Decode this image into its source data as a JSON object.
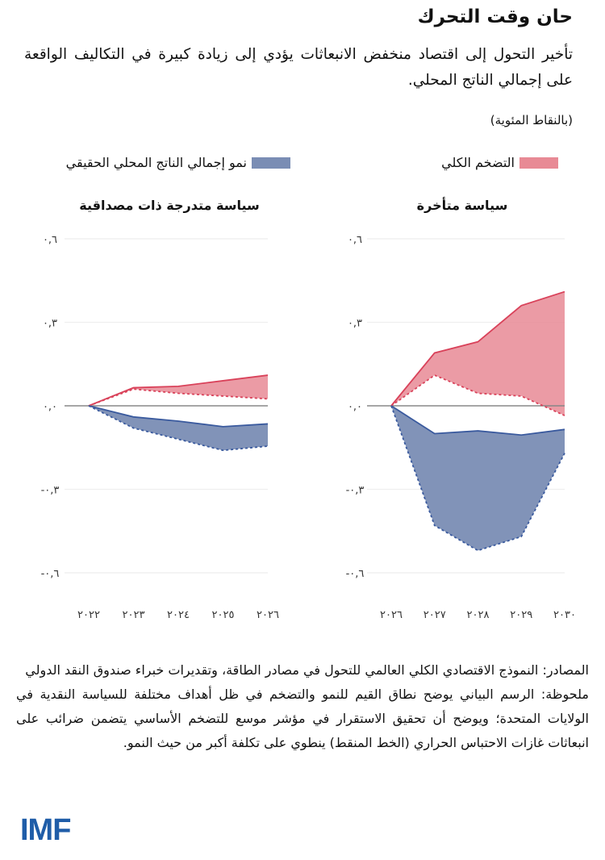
{
  "header": {
    "title": "حان وقت التحرك",
    "subtitle": "تأخير التحول إلى اقتصاد منخفض الانبعاثات يؤدي إلى زيادة كبيرة في التكاليف الواقعة على إجمالي الناتج المحلي.",
    "unit": "(بالنقاط المئوية)"
  },
  "legend": {
    "inflation": "التضخم الكلي",
    "gdp": "نمو إجمالي الناتج المحلي الحقيقي"
  },
  "colors": {
    "inflation_fill": "#e88a95",
    "inflation_line": "#d9425a",
    "gdp_fill": "#7a8db4",
    "gdp_line": "#3a5a9e",
    "zero_line": "#888888",
    "grid": "#eeeeee"
  },
  "chart_data": [
    {
      "type": "area",
      "title": "سياسة متأخرة",
      "x": [
        2026,
        2027,
        2028,
        2029,
        2030
      ],
      "x_tick_labels": [
        "٢٠٢٦",
        "٢٠٢٧",
        "٢٠٢٨",
        "٢٠٢٩",
        "٢٠٣٠"
      ],
      "y_ticks": [
        0.6,
        0.3,
        0,
        -0.3,
        -0.6
      ],
      "y_tick_labels": [
        "٠,٦",
        "٠,٣",
        "٠,٠",
        "-٠,٣",
        "-٠,٦"
      ],
      "ylim": [
        -0.6,
        0.6
      ],
      "series": [
        {
          "name": "التضخم الكلي",
          "style": "solid",
          "values": [
            0,
            0.19,
            0.23,
            0.36,
            0.41
          ]
        },
        {
          "name": "التضخم الكلي",
          "style": "dashed",
          "values": [
            0,
            0.11,
            0.045,
            0.035,
            -0.035
          ]
        },
        {
          "name": "نمو إجمالي الناتج المحلي الحقيقي",
          "style": "solid",
          "values": [
            0,
            -0.1,
            -0.09,
            -0.105,
            -0.085
          ]
        },
        {
          "name": "نمو إجمالي الناتج المحلي الحقيقي",
          "style": "dashed",
          "values": [
            0,
            -0.43,
            -0.52,
            -0.47,
            -0.17
          ]
        }
      ]
    },
    {
      "type": "area",
      "title": "سياسة متدرجة ذات مصداقية",
      "x": [
        2022,
        2023,
        2024,
        2025,
        2026
      ],
      "x_tick_labels": [
        "٢٠٢٢",
        "٢٠٢٣",
        "٢٠٢٤",
        "٢٠٢٥",
        "٢٠٢٦"
      ],
      "y_ticks": [
        0.6,
        0.3,
        0,
        -0.3,
        -0.6
      ],
      "y_tick_labels": [
        "٠,٦",
        "٠,٣",
        "٠,٠",
        "-٠,٣",
        "-٠,٦"
      ],
      "ylim": [
        -0.6,
        0.6
      ],
      "series": [
        {
          "name": "التضخم الكلي",
          "style": "solid",
          "values": [
            0,
            0.065,
            0.07,
            0.09,
            0.11
          ]
        },
        {
          "name": "التضخم الكلي",
          "style": "dashed",
          "values": [
            0,
            0.06,
            0.045,
            0.035,
            0.025
          ]
        },
        {
          "name": "نمو إجمالي الناتج المحلي الحقيقي",
          "style": "solid",
          "values": [
            0,
            -0.04,
            -0.055,
            -0.075,
            -0.065
          ]
        },
        {
          "name": "نمو إجمالي الناتج المحلي الحقيقي",
          "style": "dashed",
          "values": [
            0,
            -0.08,
            -0.12,
            -0.16,
            -0.145
          ]
        }
      ]
    }
  ],
  "footer": {
    "sources": "المصادر: النموذج الاقتصادي الكلي العالمي للتحول في مصادر الطاقة، وتقديرات خبراء صندوق النقد الدولي",
    "note": "ملحوظة: الرسم البياني يوضح نطاق القيم للنمو والتضخم في ظل أهداف مختلفة للسياسة النقدية في الولايات المتحدة؛ ويوضح أن تحقيق الاستقرار في مؤشر موسع للتضخم الأساسي يتضمن ضرائب على انبعاثات غازات الاحتباس الحراري (الخط المنقط) ينطوي على تكلفة أكبر من حيث النمو."
  },
  "logo": "IMF"
}
